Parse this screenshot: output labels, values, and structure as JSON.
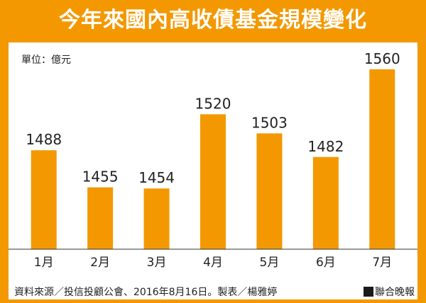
{
  "title": "今年來國內高收債基金規模變化",
  "unit_label": "單位：億元",
  "source": "資料來源／投信投顧公會、2016年8月16日。製表／楊雅婷",
  "brand": "聯合晚報",
  "colors": {
    "bar": "#f39800",
    "frame": "#f39800",
    "axis": "#333333"
  },
  "chart_data": {
    "type": "bar",
    "categories": [
      "1月",
      "2月",
      "3月",
      "4月",
      "5月",
      "6月",
      "7月"
    ],
    "values": [
      1488,
      1455,
      1454,
      1520,
      1503,
      1482,
      1560
    ],
    "ylim": [
      1400,
      1570
    ],
    "grid": false,
    "ylabel": "",
    "xlabel": ""
  }
}
